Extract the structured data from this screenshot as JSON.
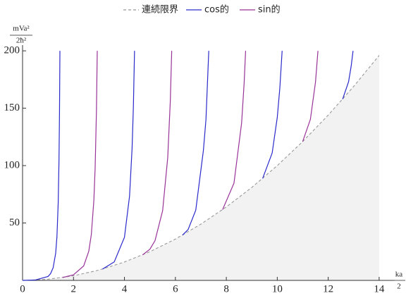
{
  "chart_data": {
    "type": "line",
    "y_label": {
      "numerator": "mVa²",
      "denominator": "2ħ²"
    },
    "x_label": {
      "numerator": "ka",
      "denominator": "2"
    },
    "xlim": [
      0,
      14.6
    ],
    "ylim": [
      0,
      205
    ],
    "xticks": [
      0,
      2,
      4,
      6,
      8,
      10,
      12,
      14
    ],
    "yticks": [
      50,
      100,
      150,
      200
    ],
    "legend": "top",
    "series": [
      {
        "name": "連続限界",
        "color": "#999999",
        "dashed": true,
        "fill": "#f2f2f2",
        "x": [
          0,
          1,
          2,
          3,
          4,
          5,
          6,
          7,
          8,
          9,
          10,
          11,
          12,
          13,
          14
        ],
        "values": [
          0,
          1,
          4,
          9,
          16,
          25,
          36,
          49,
          64,
          81,
          100,
          121,
          144,
          169,
          196
        ]
      },
      {
        "name": "cos的",
        "color": "#2a2acc",
        "x": [
          0,
          0.5,
          1.0,
          1.1,
          1.2,
          1.3,
          1.35,
          1.4,
          1.43,
          1.45,
          1.467,
          null,
          3.1416,
          3.6,
          4.0,
          4.2,
          4.3,
          4.35,
          4.396,
          null,
          6.283,
          6.5,
          6.8,
          7.1,
          7.2,
          7.311,
          null,
          9.425,
          9.8,
          10.0,
          10.1,
          10.191,
          null,
          12.566,
          12.8,
          12.9,
          12.975
        ],
        "values": [
          0,
          0.33,
          3.43,
          5.88,
          10.97,
          23.6,
          38.0,
          67.8,
          103.9,
          144.7,
          200,
          null,
          9.87,
          16.1,
          37.5,
          73.4,
          115.1,
          150.5,
          200,
          null,
          39.5,
          44.3,
          61.2,
          113.3,
          140.0,
          200,
          null,
          88.8,
          111.0,
          142.0,
          167.4,
          200,
          null,
          157.9,
          173.1,
          186.5,
          200
        ]
      },
      {
        "name": "sin的",
        "color": "#993399",
        "x": [
          1.571,
          2.0,
          2.4,
          2.6,
          2.7,
          2.8,
          2.85,
          2.9,
          2.933,
          null,
          4.712,
          5.0,
          5.2,
          5.5,
          5.7,
          5.8,
          5.856,
          null,
          7.854,
          8.3,
          8.6,
          8.7,
          8.757,
          null,
          10.996,
          11.3,
          11.5,
          11.597
        ],
        "values": [
          2.47,
          4.84,
          12.6,
          25.4,
          39.9,
          69.9,
          98.2,
          147,
          200,
          null,
          22.2,
          27.2,
          34.6,
          60.8,
          107.1,
          155.8,
          200,
          null,
          61.7,
          84.7,
          137.1,
          172.2,
          200,
          null,
          120.9,
          140.3,
          172.6,
          200
        ]
      }
    ]
  }
}
